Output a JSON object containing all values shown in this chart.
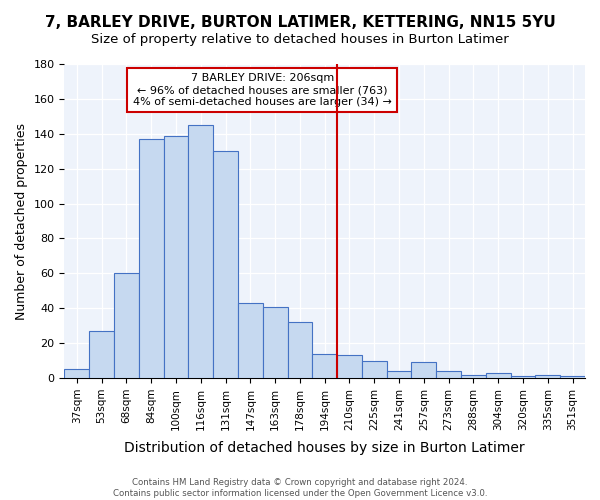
{
  "title": "7, BARLEY DRIVE, BURTON LATIMER, KETTERING, NN15 5YU",
  "subtitle": "Size of property relative to detached houses in Burton Latimer",
  "xlabel": "Distribution of detached houses by size in Burton Latimer",
  "ylabel": "Number of detached properties",
  "bar_labels": [
    "37sqm",
    "53sqm",
    "68sqm",
    "84sqm",
    "100sqm",
    "116sqm",
    "131sqm",
    "147sqm",
    "163sqm",
    "178sqm",
    "194sqm",
    "210sqm",
    "225sqm",
    "241sqm",
    "257sqm",
    "273sqm",
    "288sqm",
    "304sqm",
    "320sqm",
    "335sqm",
    "351sqm"
  ],
  "bar_values": [
    5,
    27,
    60,
    137,
    139,
    145,
    130,
    43,
    41,
    32,
    14,
    13,
    10,
    4,
    9,
    4,
    2,
    3,
    1,
    2,
    1
  ],
  "bar_color": "#c6d9f0",
  "bar_edge_color": "#4472c4",
  "vline_x": 10.5,
  "vline_color": "#cc0000",
  "annotation_title": "7 BARLEY DRIVE: 206sqm",
  "annotation_line1": "← 96% of detached houses are smaller (763)",
  "annotation_line2": "4% of semi-detached houses are larger (34) →",
  "ylim": [
    0,
    180
  ],
  "yticks": [
    0,
    20,
    40,
    60,
    80,
    100,
    120,
    140,
    160,
    180
  ],
  "footer_line1": "Contains HM Land Registry data © Crown copyright and database right 2024.",
  "footer_line2": "Contains public sector information licensed under the Open Government Licence v3.0.",
  "title_fontsize": 11,
  "subtitle_fontsize": 9.5,
  "xlabel_fontsize": 10,
  "ylabel_fontsize": 9,
  "bg_color": "#eef3fb"
}
